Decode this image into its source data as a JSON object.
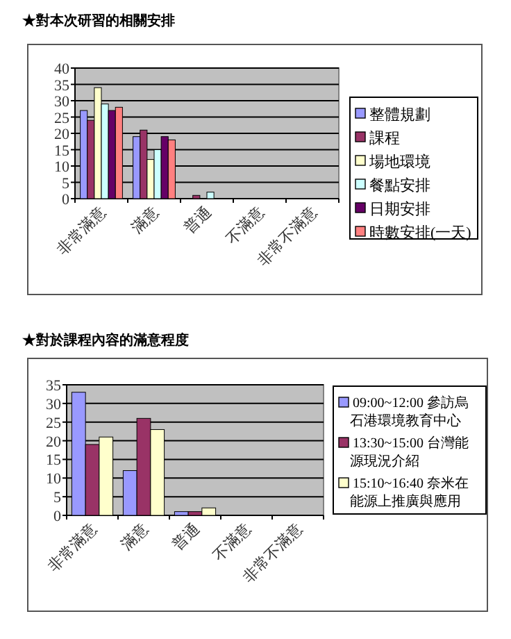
{
  "chart_data": [
    {
      "type": "bar",
      "title": "★對本次研習的相關安排",
      "categories": [
        "非常滿意",
        "滿意",
        "普通",
        "不滿意",
        "非常不滿意"
      ],
      "ylim": [
        0,
        40
      ],
      "yticks": [
        0,
        5,
        10,
        15,
        20,
        25,
        30,
        35,
        40
      ],
      "grid": "y",
      "legend": "right",
      "series": [
        {
          "name": "整體規劃",
          "color": "#9999ff",
          "values": [
            27,
            19,
            0,
            0,
            0
          ]
        },
        {
          "name": "課程",
          "color": "#993366",
          "values": [
            24,
            21,
            1,
            0,
            0
          ]
        },
        {
          "name": "場地環境",
          "color": "#ffffcc",
          "values": [
            34,
            12,
            0,
            0,
            0
          ]
        },
        {
          "name": "餐點安排",
          "color": "#ccffff",
          "values": [
            29,
            15,
            2,
            0,
            0
          ]
        },
        {
          "name": "日期安排",
          "color": "#660066",
          "values": [
            27,
            19,
            0,
            0,
            0
          ]
        },
        {
          "name": "時數安排(一天)",
          "color": "#ff8080",
          "values": [
            28,
            18,
            0,
            0,
            0
          ]
        }
      ]
    },
    {
      "type": "bar",
      "title": "★對於課程內容的滿意程度",
      "categories": [
        "非常滿意",
        "滿意",
        "普通",
        "不滿意",
        "非常不滿意"
      ],
      "ylim": [
        0,
        35
      ],
      "yticks": [
        0,
        5,
        10,
        15,
        20,
        25,
        30,
        35
      ],
      "grid": "y",
      "legend": "right",
      "series": [
        {
          "name": "09:00~12:00 參訪烏石港環境教育中心",
          "color": "#9999ff",
          "values": [
            33,
            12,
            1,
            0,
            0
          ]
        },
        {
          "name": "13:30~15:00 台灣能源現況介紹",
          "color": "#993366",
          "values": [
            19,
            26,
            1,
            0,
            0
          ]
        },
        {
          "name": "15:10~16:40 奈米在能源上推廣與應用",
          "color": "#ffffcc",
          "values": [
            21,
            23,
            2,
            0,
            0
          ]
        }
      ]
    }
  ]
}
